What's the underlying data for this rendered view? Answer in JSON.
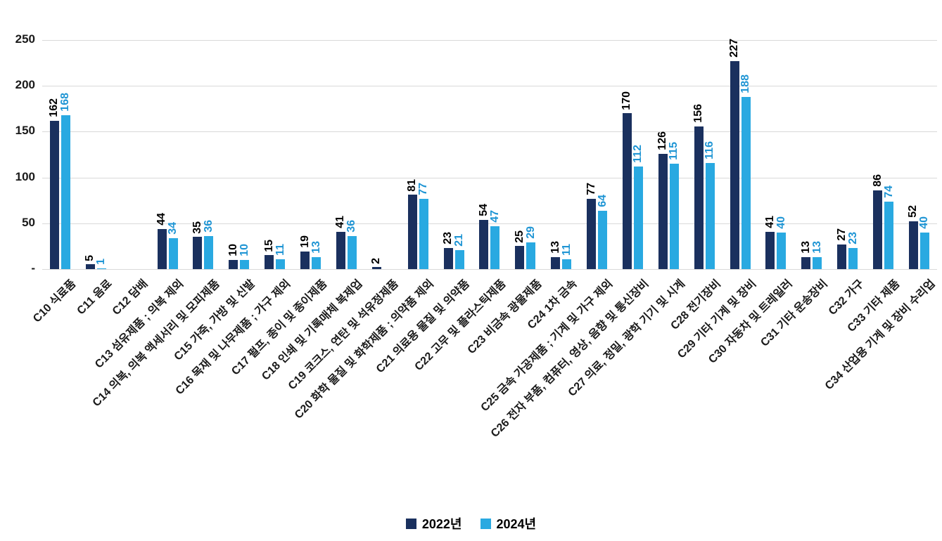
{
  "chart_data": {
    "type": "bar",
    "categories": [
      "C10 식료품",
      "C11 음료",
      "C12 담배",
      "C13 섬유제품 ; 의복 제외",
      "C14 의복, 의복 액세서리 및 모피제품",
      "C15 가죽, 가방 및 신발",
      "C16 목재 및 나무제품 ; 가구 제외",
      "C17 펄프, 종이 및 종이제품",
      "C18 인쇄 및 기록매체 복제업",
      "C19 코크스, 연탄 및 석유정제품",
      "C20 화학 물질 및 화학제품 ; 의약품 제외",
      "C21 의료용 물질 및 의약품",
      "C22 고무 및 플라스틱제품",
      "C23 비금속 광물제품",
      "C24 1차 금속",
      "C25 금속 가공제품 ; 기계 및 가구 제외",
      "C26 전자 부품, 컴퓨터, 영상, 음향 및 통신장비",
      "C27 의료, 정밀, 광학 기기 및 시계",
      "C28 전기장비",
      "C29 기타 기계 및 장비",
      "C30 자동차 및 트레일러",
      "C31 기타 운송장비",
      "C32 가구",
      "C33 기타 제품",
      "C34 산업용 기계 및 장비 수리업"
    ],
    "series": [
      {
        "name": "2022년",
        "color": "#1a305e",
        "label_color": "#000000",
        "values": [
          162,
          5,
          0,
          44,
          35,
          10,
          15,
          19,
          41,
          2,
          81,
          23,
          54,
          25,
          13,
          77,
          170,
          126,
          156,
          227,
          41,
          13,
          27,
          86,
          52
        ]
      },
      {
        "name": "2024년",
        "color": "#29a9e1",
        "label_color": "#1f95d4",
        "values": [
          168,
          1,
          0,
          34,
          36,
          10,
          11,
          13,
          36,
          0,
          77,
          21,
          47,
          29,
          11,
          64,
          112,
          115,
          116,
          188,
          40,
          13,
          23,
          74,
          40
        ]
      }
    ],
    "ylim": [
      0,
      250
    ],
    "yticks": [
      "-",
      "50",
      "100",
      "150",
      "200",
      "250"
    ],
    "grid": true,
    "legend_position": "bottom",
    "value_labels": "rotated-vertical",
    "x_label_rotation_deg": 45
  }
}
